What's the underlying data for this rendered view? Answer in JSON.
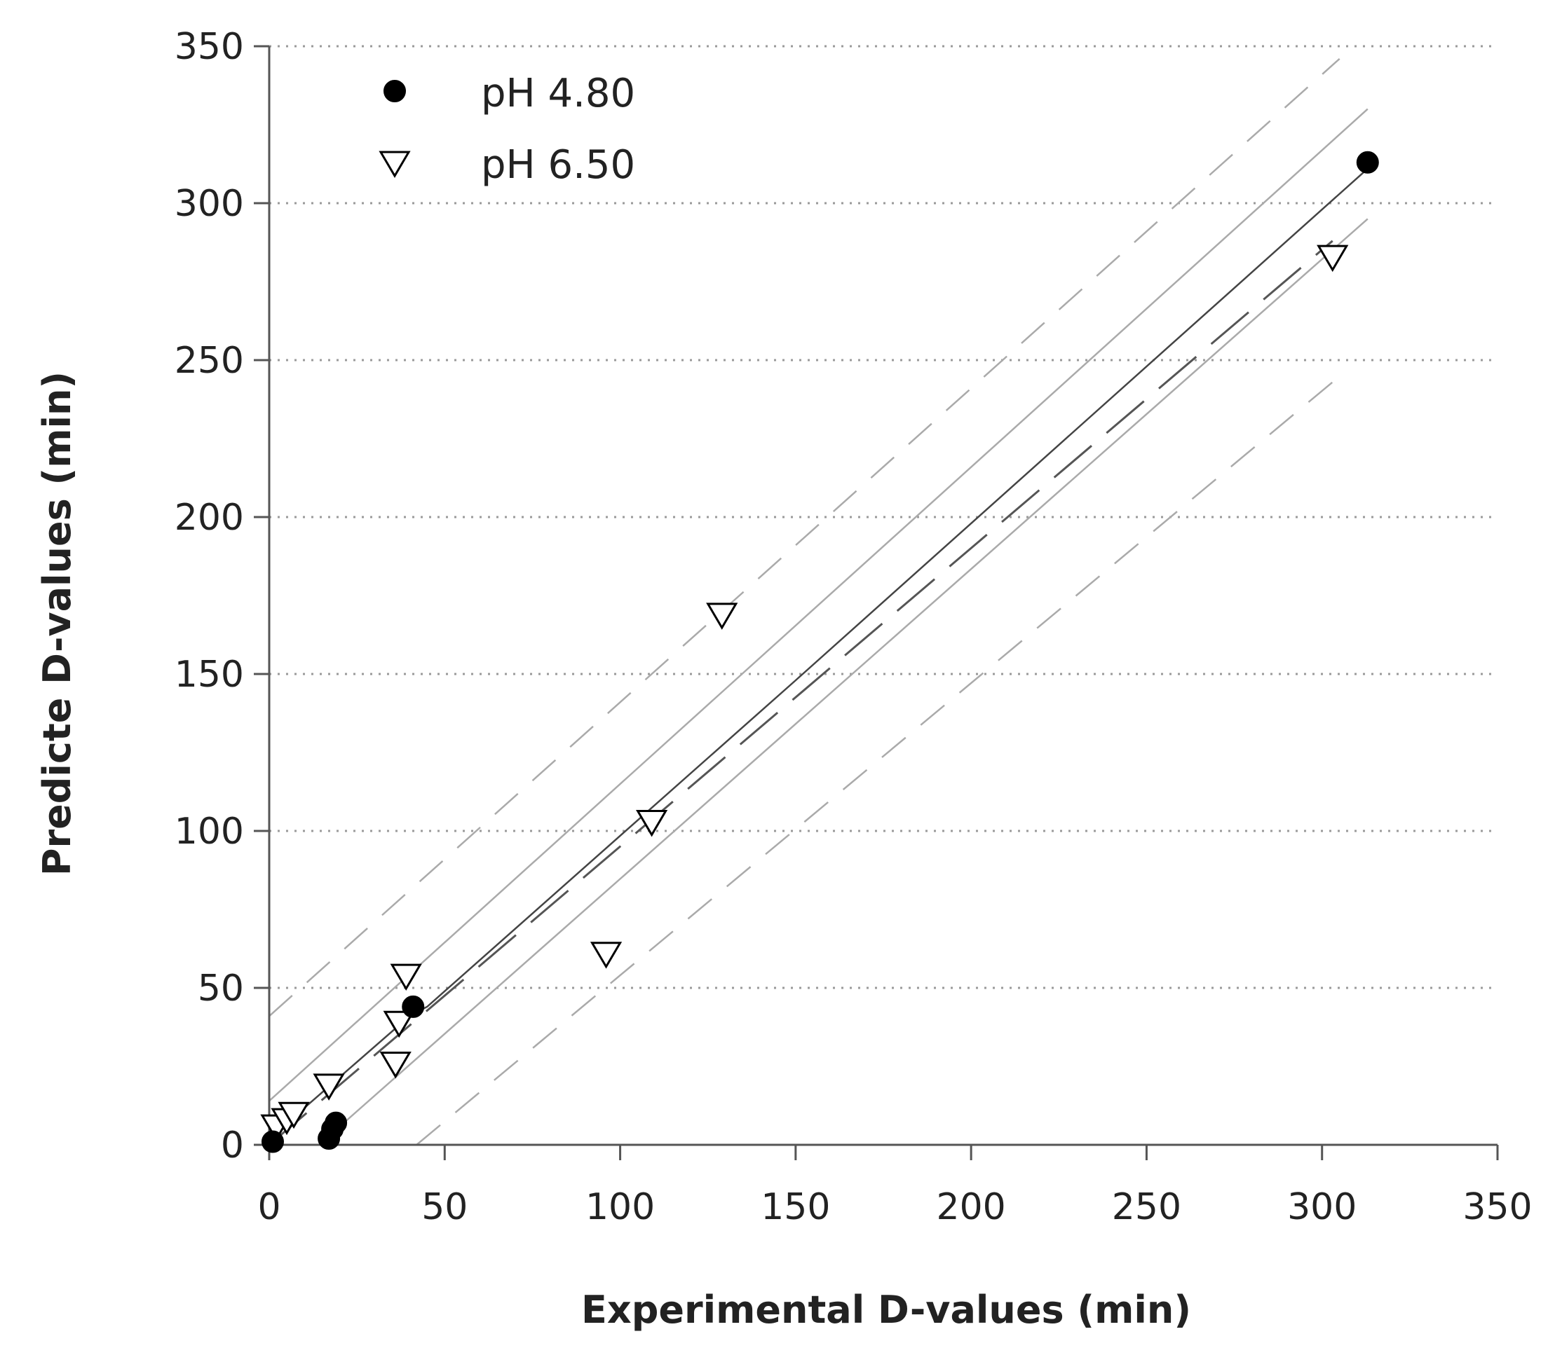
{
  "chart_data": {
    "type": "scatter",
    "title": "",
    "xlabel": "Experimental D-values (min)",
    "ylabel": "Predicte D-values (min)",
    "xlim": [
      0,
      350
    ],
    "ylim": [
      0,
      350
    ],
    "x_ticks": [
      0,
      50,
      100,
      150,
      200,
      250,
      300,
      350
    ],
    "y_ticks": [
      0,
      50,
      100,
      150,
      200,
      250,
      300,
      350
    ],
    "x_tick_labels": [
      "0",
      "50",
      "100",
      "150",
      "200",
      "250",
      "300",
      "350"
    ],
    "y_tick_labels": [
      "0",
      "50",
      "100",
      "150",
      "200",
      "250",
      "300",
      "350"
    ],
    "grid": "horizontal dotted",
    "legend_position": "top-left",
    "series": [
      {
        "name": "pH 4.80",
        "marker": "filled-circle",
        "color": "#000000",
        "points": [
          {
            "x": 1,
            "y": 1
          },
          {
            "x": 17,
            "y": 2
          },
          {
            "x": 18,
            "y": 5
          },
          {
            "x": 19,
            "y": 7
          },
          {
            "x": 41,
            "y": 44
          },
          {
            "x": 313,
            "y": 313
          }
        ]
      },
      {
        "name": "pH 6.50",
        "marker": "open-triangle-down",
        "color": "#000000",
        "points": [
          {
            "x": 2,
            "y": 6
          },
          {
            "x": 5,
            "y": 8
          },
          {
            "x": 7,
            "y": 10
          },
          {
            "x": 17,
            "y": 19
          },
          {
            "x": 36,
            "y": 26
          },
          {
            "x": 37,
            "y": 39
          },
          {
            "x": 39,
            "y": 54
          },
          {
            "x": 96,
            "y": 61
          },
          {
            "x": 109,
            "y": 103
          },
          {
            "x": 129,
            "y": 169
          },
          {
            "x": 303,
            "y": 283
          }
        ]
      }
    ],
    "reference_lines": [
      {
        "style": "solid-thin",
        "color": "#444444",
        "points": [
          [
            0,
            2
          ],
          [
            40,
            41
          ],
          [
            45,
            44
          ],
          [
            150,
            148
          ],
          [
            315,
            313
          ]
        ]
      },
      {
        "style": "long-dash",
        "color": "#555555",
        "points": [
          [
            0,
            0
          ],
          [
            303,
            288
          ]
        ]
      },
      {
        "style": "solid",
        "color": "#aaaaaa",
        "points": [
          [
            0,
            14
          ],
          [
            313,
            330
          ]
        ]
      },
      {
        "style": "solid",
        "color": "#aaaaaa",
        "points": [
          [
            0,
            -14
          ],
          [
            313,
            295
          ]
        ]
      },
      {
        "style": "dashed",
        "color": "#aaaaaa",
        "points": [
          [
            0,
            41
          ],
          [
            305,
            346
          ]
        ]
      },
      {
        "style": "dashed",
        "color": "#aaaaaa",
        "points": [
          [
            42,
            0
          ],
          [
            303,
            243
          ]
        ]
      }
    ]
  }
}
